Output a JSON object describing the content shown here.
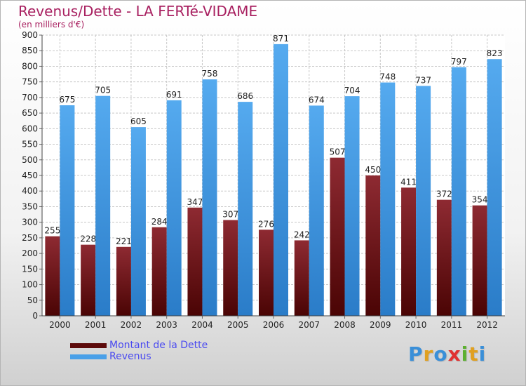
{
  "page": {
    "title": "Revenus/Dette - LA FERTé-VIDAME",
    "subtitle": "(en milliers d'€)"
  },
  "chart_data": {
    "type": "bar",
    "categories": [
      "2000",
      "2001",
      "2002",
      "2003",
      "2004",
      "2005",
      "2006",
      "2007",
      "2008",
      "2009",
      "2010",
      "2011",
      "2012"
    ],
    "series": [
      {
        "name": "Montant de la Dette",
        "color": "#7a1a22",
        "values": [
          255,
          228,
          221,
          284,
          347,
          307,
          276,
          242,
          507,
          450,
          411,
          372,
          354
        ]
      },
      {
        "name": "Revenus",
        "color": "#4aa0e8",
        "values": [
          675,
          705,
          605,
          691,
          758,
          686,
          871,
          674,
          704,
          748,
          737,
          797,
          823
        ]
      }
    ],
    "ylim": [
      0,
      900
    ],
    "ytick_step": 50,
    "grid": true,
    "legend_position": "bottom-left"
  },
  "legend": {
    "items": [
      {
        "label": "Montant de la Dette",
        "color": "#5c0a0a"
      },
      {
        "label": "Revenus",
        "color": "#4aa0e8"
      }
    ]
  },
  "logo": {
    "letters": [
      "P",
      "r",
      "o",
      "x",
      "i",
      "t",
      "i"
    ],
    "colors": [
      "#3a8fd8",
      "#e0a020",
      "#3a8fd8",
      "#e03030",
      "#5cb030",
      "#e0a020",
      "#3a8fd8"
    ]
  }
}
